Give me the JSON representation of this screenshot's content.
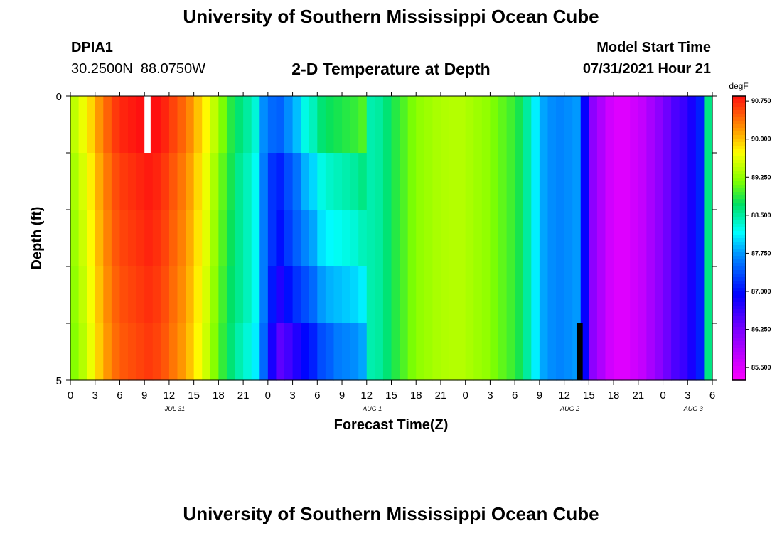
{
  "page": {
    "title": "University of Southern Mississippi Ocean Cube",
    "footer_title": "University of Southern Mississippi Ocean Cube",
    "station_id": "DPIA1",
    "coordinates": "30.2500N  88.0750W",
    "plot_title": "2-D Temperature at Depth",
    "model_label": "Model Start Time",
    "model_start": "07/31/2021 Hour 21"
  },
  "chart_data": {
    "type": "heatmap",
    "title": "2-D Temperature at Depth",
    "xlabel": "Forecast Time(Z)",
    "ylabel": "Depth (ft)",
    "ylim": [
      0,
      5
    ],
    "y_ticks": [
      "0",
      "5"
    ],
    "x_tick_labels": [
      "0",
      "3",
      "6",
      "9",
      "12",
      "15",
      "18",
      "21",
      "0",
      "3",
      "6",
      "9",
      "12",
      "15",
      "18",
      "21",
      "0",
      "3",
      "6",
      "9",
      "12",
      "15",
      "18",
      "21",
      "0",
      "3",
      "6"
    ],
    "date_labels": [
      "JUL 31",
      "AUG 1",
      "AUG 2",
      "AUG 3"
    ],
    "colorbar": {
      "unit": "degF",
      "ticks": [
        "90.750",
        "90.000",
        "89.250",
        "88.500",
        "87.750",
        "87.000",
        "86.250",
        "85.500"
      ],
      "range": [
        85.25,
        90.85
      ]
    },
    "depth_rows": 5,
    "hours": 78,
    "column_temps_degF": [
      89.3,
      89.5,
      89.75,
      90.05,
      90.3,
      90.5,
      90.6,
      90.65,
      90.7,
      90.75,
      90.7,
      90.6,
      90.45,
      90.3,
      90.1,
      89.85,
      89.6,
      89.3,
      89.0,
      88.75,
      88.55,
      88.4,
      88.2,
      87.6,
      87.2,
      87.0,
      87.25,
      87.45,
      87.65,
      87.8,
      88.05,
      88.15,
      88.2,
      88.25,
      88.3,
      88.4,
      88.45,
      88.5,
      88.65,
      88.85,
      89.0,
      89.15,
      89.25,
      89.3,
      89.35,
      89.38,
      89.4,
      89.4,
      89.35,
      89.3,
      89.25,
      89.15,
      89.05,
      88.95,
      88.8,
      88.5,
      88.1,
      87.8,
      87.7,
      87.65,
      87.7,
      87.75,
      86.9,
      86.1,
      85.85,
      85.6,
      85.5,
      85.5,
      85.6,
      85.7,
      85.9,
      86.1,
      86.3,
      86.5,
      86.6,
      86.8,
      87.1,
      88.6
    ],
    "depth_anomalies_degF": [
      [
        0.15,
        0.15,
        0.15,
        0.15,
        0.15,
        0.15,
        0.15,
        0.15,
        0.15,
        0.15,
        0.15,
        0.15,
        0.15,
        0.15,
        0.15,
        0.15,
        0.15,
        0.15,
        0.15,
        0.1,
        0.1,
        0.1,
        0.1,
        0.1,
        0.3,
        0.45,
        0.45,
        0.45,
        0.6,
        0.6,
        0.6,
        0.6,
        0.6,
        0.6,
        0.6,
        0.6,
        0,
        0,
        0,
        0,
        0,
        0,
        0,
        0,
        0,
        0,
        0,
        0,
        0,
        0,
        0,
        0,
        0,
        0,
        0,
        0,
        0,
        0,
        0,
        0,
        0,
        0,
        0,
        0,
        0,
        0,
        0,
        0,
        0,
        0,
        0,
        0,
        0,
        0,
        0,
        0,
        0,
        0
      ],
      [
        0.05,
        0.05,
        0.05,
        0.05,
        0.05,
        0.05,
        0.05,
        0.05,
        0.05,
        0.05,
        0.05,
        0.05,
        0.05,
        0.05,
        0.05,
        0.05,
        0.05,
        0.05,
        0.05,
        0.05,
        0,
        0,
        0,
        0,
        0,
        0.1,
        0.1,
        0.1,
        0.2,
        0.2,
        0.2,
        0.2,
        0.2,
        0.2,
        0.2,
        0.2,
        0,
        0,
        0,
        0,
        0,
        0,
        0,
        0,
        0,
        0,
        0,
        0,
        0,
        0,
        0,
        0,
        0,
        0,
        0,
        0,
        0,
        0,
        0,
        0,
        0,
        0,
        0,
        0,
        0,
        0,
        0,
        0,
        0,
        0,
        0,
        0,
        0,
        0,
        0,
        0,
        0,
        0
      ],
      [
        0,
        0,
        0,
        0,
        0,
        0,
        0,
        0,
        0,
        0,
        0,
        0,
        0,
        0,
        0,
        0,
        0,
        0,
        0,
        0,
        0,
        0,
        0,
        0,
        0,
        0,
        0,
        0,
        0,
        0,
        0,
        0,
        0,
        0,
        0,
        0,
        0,
        0,
        0,
        0,
        0,
        0,
        0,
        0,
        0,
        0,
        0,
        0,
        0,
        0,
        0,
        0,
        0,
        0,
        0,
        0,
        0,
        0,
        0,
        0,
        0,
        0,
        0,
        0,
        0,
        0,
        0,
        0,
        0,
        0,
        0,
        0,
        0,
        0,
        0,
        0,
        0,
        0
      ],
      [
        -0.05,
        -0.05,
        -0.05,
        -0.05,
        -0.05,
        -0.05,
        -0.05,
        -0.05,
        -0.05,
        -0.05,
        -0.05,
        -0.05,
        -0.05,
        -0.05,
        -0.05,
        -0.05,
        -0.05,
        -0.05,
        -0.05,
        -0.05,
        0,
        0,
        0,
        0,
        -0.15,
        -0.25,
        -0.25,
        -0.25,
        -0.3,
        -0.3,
        -0.3,
        -0.3,
        -0.3,
        -0.3,
        -0.3,
        -0.3,
        0,
        0,
        0,
        0,
        0,
        0,
        0,
        0,
        0,
        0,
        0,
        0,
        0,
        0,
        0,
        0,
        0,
        0,
        0,
        0,
        0,
        0,
        0,
        0,
        0,
        0,
        0,
        0,
        0,
        0,
        0,
        0,
        0,
        0,
        0,
        0,
        0,
        0,
        0,
        0,
        0,
        0
      ],
      [
        -0.1,
        -0.1,
        -0.1,
        -0.1,
        -0.1,
        -0.1,
        -0.1,
        -0.1,
        -0.1,
        -0.1,
        -0.1,
        -0.1,
        -0.1,
        -0.1,
        -0.1,
        -0.1,
        -0.1,
        -0.1,
        -0.1,
        -0.1,
        -0.1,
        -0.1,
        -0.1,
        -0.1,
        -0.4,
        -0.6,
        -0.7,
        -0.7,
        -0.7,
        -0.7,
        -0.7,
        -0.7,
        -0.6,
        -0.6,
        -0.6,
        -0.6,
        0,
        0,
        0,
        0,
        0,
        0,
        0,
        0,
        0,
        0,
        0,
        0,
        0,
        0,
        0,
        0,
        0,
        0,
        0,
        0,
        0,
        0,
        0,
        0,
        0,
        0,
        0,
        0,
        0,
        0,
        0,
        0,
        0,
        0,
        0,
        0,
        0,
        0,
        0,
        0,
        0,
        0
      ]
    ],
    "markers": [
      {
        "label": "current time",
        "hour": 9,
        "color": "#ffffff",
        "depth_row": 0
      },
      {
        "label": "high tide",
        "hour": 61.5,
        "color": "#000000",
        "depth_row": 4
      }
    ]
  }
}
